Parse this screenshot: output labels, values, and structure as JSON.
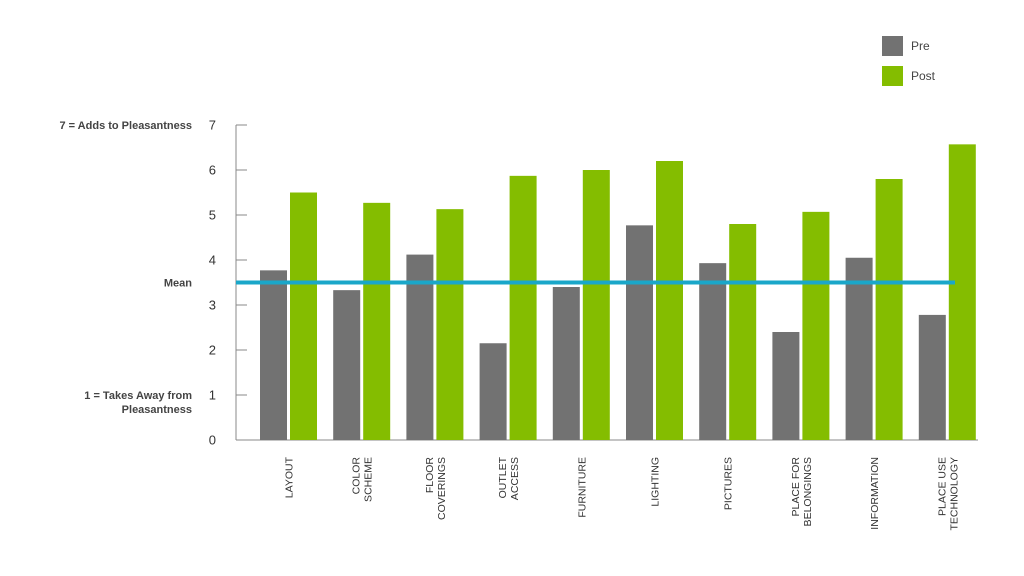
{
  "chart_data": {
    "type": "bar",
    "categories": [
      [
        "LAYOUT"
      ],
      [
        "COLOR",
        "SCHEME"
      ],
      [
        "FLOOR",
        "COVERINGS"
      ],
      [
        "OUTLET",
        "ACCESS"
      ],
      [
        "FURNITURE"
      ],
      [
        "LIGHTING"
      ],
      [
        "PICTURES"
      ],
      [
        "PLACE FOR",
        "BELONGINGS"
      ],
      [
        "INFORMATION"
      ],
      [
        "PLACE USE",
        "TECHNOLOGY"
      ]
    ],
    "series": [
      {
        "name": "Pre",
        "color": "#727272",
        "values": [
          3.77,
          3.33,
          4.12,
          2.15,
          3.4,
          4.77,
          3.93,
          2.4,
          4.05,
          2.78
        ]
      },
      {
        "name": "Post",
        "color": "#84bd00",
        "values": [
          5.5,
          5.27,
          5.13,
          5.87,
          6.0,
          6.2,
          4.8,
          5.07,
          5.8,
          6.57
        ]
      }
    ],
    "mean": {
      "label": "Mean",
      "value": 3.5,
      "color": "#1aa7c9"
    },
    "y_annotations": [
      {
        "lines": [
          "7 = Adds to Pleasantness"
        ],
        "value": 7
      },
      {
        "lines": [
          "1 = Takes Away from",
          "Pleasantness"
        ],
        "value": 1
      }
    ],
    "yticks": [
      0,
      1,
      2,
      3,
      4,
      5,
      6,
      7
    ],
    "ylim": [
      0,
      7
    ],
    "grid": false,
    "legend_position": "top-right",
    "title": "",
    "xlabel": "",
    "ylabel": ""
  }
}
